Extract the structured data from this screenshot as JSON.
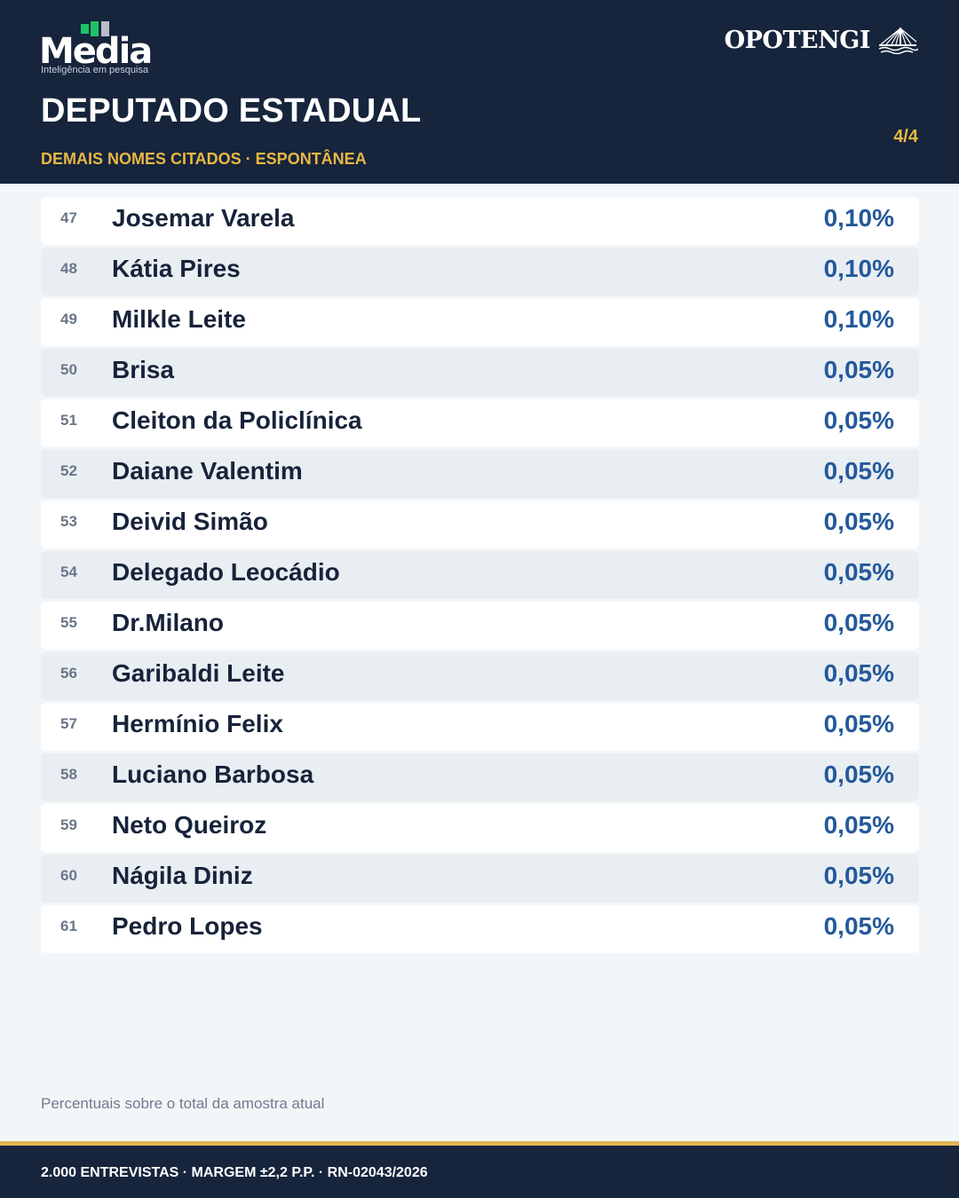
{
  "header": {
    "logo_left": {
      "word": "Media",
      "tagline": "Inteligência em pesquisa",
      "accent": "#1cc36a"
    },
    "logo_right": {
      "word": "OPOTENGI",
      "icon": "bridge-icon"
    },
    "title": "DEPUTADO ESTADUAL",
    "subtitle": "DEMAIS NOMES CITADOS · ESPONTÂNEA",
    "page_indicator": "4/4"
  },
  "rows": [
    {
      "rank": "47",
      "name": "Josemar Varela",
      "pct": "0,10%"
    },
    {
      "rank": "48",
      "name": "Kátia Pires",
      "pct": "0,10%"
    },
    {
      "rank": "49",
      "name": "Milkle Leite",
      "pct": "0,10%"
    },
    {
      "rank": "50",
      "name": "Brisa",
      "pct": "0,05%"
    },
    {
      "rank": "51",
      "name": "Cleiton da Policlínica",
      "pct": "0,05%"
    },
    {
      "rank": "52",
      "name": "Daiane Valentim",
      "pct": "0,05%"
    },
    {
      "rank": "53",
      "name": "Deivid Simão",
      "pct": "0,05%"
    },
    {
      "rank": "54",
      "name": "Delegado Leocádio",
      "pct": "0,05%"
    },
    {
      "rank": "55",
      "name": "Dr.Milano",
      "pct": "0,05%"
    },
    {
      "rank": "56",
      "name": "Garibaldi Leite",
      "pct": "0,05%"
    },
    {
      "rank": "57",
      "name": "Hermínio Felix",
      "pct": "0,05%"
    },
    {
      "rank": "58",
      "name": "Luciano Barbosa",
      "pct": "0,05%"
    },
    {
      "rank": "59",
      "name": "Neto Queiroz",
      "pct": "0,05%"
    },
    {
      "rank": "60",
      "name": "Nágila Diniz",
      "pct": "0,05%"
    },
    {
      "rank": "61",
      "name": "Pedro Lopes",
      "pct": "0,05%"
    }
  ],
  "footnote": "Percentuais sobre o total da amostra atual",
  "footer": {
    "text": "2.000 ENTREVISTAS · MARGEM ±2,2 P.P. · RN-02043/2026"
  },
  "colors": {
    "navy": "#16243c",
    "gold": "#e9b843",
    "value_blue": "#24599b"
  }
}
